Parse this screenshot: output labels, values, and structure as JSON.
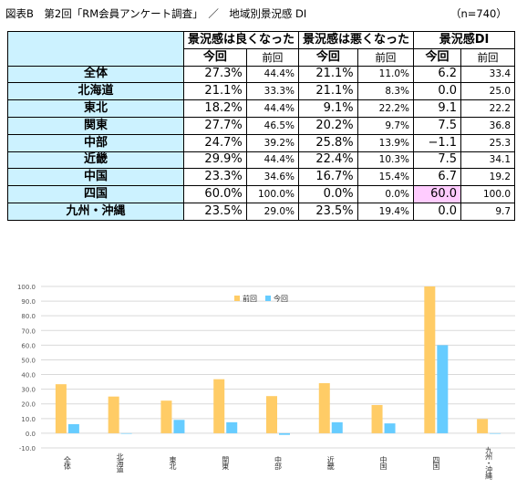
{
  "title": "図表B　第2回「RM会員アンケート調査」　／　地域別景況感 DI",
  "sample_note": "（n=740）",
  "table": {
    "groups": [
      "景況感は良くなった",
      "景況感は悪くなった",
      "景況感DI"
    ],
    "subheaders": [
      "今回",
      "前回",
      "今回",
      "前回",
      "今回",
      "前回"
    ],
    "rows": [
      {
        "region": "全体",
        "good_now": "27.3%",
        "good_prev": "44.4%",
        "bad_now": "21.1%",
        "bad_prev": "11.0%",
        "di_now": "6.2",
        "di_prev": "33.4"
      },
      {
        "region": "北海道",
        "good_now": "21.1%",
        "good_prev": "33.3%",
        "bad_now": "21.1%",
        "bad_prev": "8.3%",
        "di_now": "0.0",
        "di_prev": "25.0"
      },
      {
        "region": "東北",
        "good_now": "18.2%",
        "good_prev": "44.4%",
        "bad_now": "9.1%",
        "bad_prev": "22.2%",
        "di_now": "9.1",
        "di_prev": "22.2"
      },
      {
        "region": "関東",
        "good_now": "27.7%",
        "good_prev": "46.5%",
        "bad_now": "20.2%",
        "bad_prev": "9.7%",
        "di_now": "7.5",
        "di_prev": "36.8"
      },
      {
        "region": "中部",
        "good_now": "24.7%",
        "good_prev": "39.2%",
        "bad_now": "25.8%",
        "bad_prev": "13.9%",
        "di_now": "−1.1",
        "di_prev": "25.3"
      },
      {
        "region": "近畿",
        "good_now": "29.9%",
        "good_prev": "44.4%",
        "bad_now": "22.4%",
        "bad_prev": "10.3%",
        "di_now": "7.5",
        "di_prev": "34.1"
      },
      {
        "region": "中国",
        "good_now": "23.3%",
        "good_prev": "34.6%",
        "bad_now": "16.7%",
        "bad_prev": "15.4%",
        "di_now": "6.7",
        "di_prev": "19.2"
      },
      {
        "region": "四国",
        "good_now": "60.0%",
        "good_prev": "100.0%",
        "bad_now": "0.0%",
        "bad_prev": "0.0%",
        "di_now": "60.0",
        "di_prev": "100.0",
        "highlight": "#ffccff"
      },
      {
        "region": "九州・沖縄",
        "good_now": "23.5%",
        "good_prev": "29.0%",
        "bad_now": "23.5%",
        "bad_prev": "19.4%",
        "di_now": "0.0",
        "di_prev": "9.7"
      }
    ]
  },
  "chart_data": {
    "type": "bar",
    "categories": [
      "全体",
      "北海道",
      "東北",
      "関東",
      "中部",
      "近畿",
      "中国",
      "四国",
      "九州・沖縄"
    ],
    "series": [
      {
        "name": "前回",
        "color": "#ffcc66",
        "values": [
          33.4,
          25.0,
          22.2,
          36.8,
          25.3,
          34.1,
          19.2,
          100.0,
          9.7
        ]
      },
      {
        "name": "今回",
        "color": "#66ccff",
        "values": [
          6.2,
          0.0,
          9.1,
          7.5,
          -1.1,
          7.5,
          6.7,
          60.0,
          0.0
        ]
      }
    ],
    "ylim": [
      -10,
      100
    ],
    "yticks": [
      "-10.0",
      "0.0",
      "10.0",
      "20.0",
      "30.0",
      "40.0",
      "50.0",
      "60.0",
      "70.0",
      "80.0",
      "90.0",
      "100.0"
    ],
    "grid": true,
    "legend_position": "top-left"
  }
}
